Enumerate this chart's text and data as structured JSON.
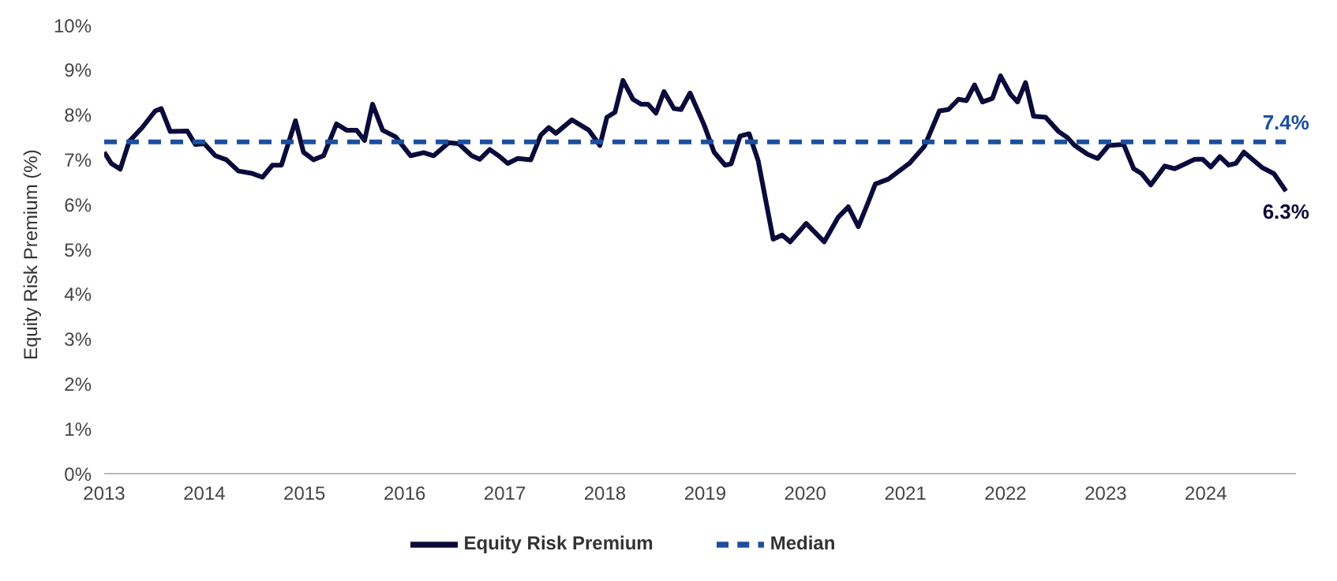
{
  "chart_data": {
    "type": "line",
    "ylabel": "Equity Risk Premium (%)",
    "xlim": [
      2013,
      2024.9
    ],
    "xticks": [
      2013,
      2014,
      2015,
      2016,
      2017,
      2018,
      2019,
      2020,
      2021,
      2022,
      2023,
      2024
    ],
    "ylim": [
      0,
      10
    ],
    "yticks": [
      {
        "value": 0,
        "label": "0%"
      },
      {
        "value": 1,
        "label": "1%"
      },
      {
        "value": 2,
        "label": "2%"
      },
      {
        "value": 3,
        "label": "3%"
      },
      {
        "value": 4,
        "label": "4%"
      },
      {
        "value": 5,
        "label": "5%"
      },
      {
        "value": 6,
        "label": "6%"
      },
      {
        "value": 7,
        "label": "7%"
      },
      {
        "value": 8,
        "label": "8%"
      },
      {
        "value": 9,
        "label": "9%"
      },
      {
        "value": 10,
        "label": "10%"
      }
    ],
    "grid": false,
    "legend": "bottom",
    "marker": "none",
    "series": [
      {
        "name": "Equity Risk Premium",
        "color": "#0b0b3b",
        "line_style": "solid",
        "x": [
          2013.0,
          2013.07,
          2013.16,
          2013.25,
          2013.38,
          2013.51,
          2013.57,
          2013.66,
          2013.83,
          2013.91,
          2014.0,
          2014.11,
          2014.22,
          2014.34,
          2014.47,
          2014.58,
          2014.68,
          2014.77,
          2014.91,
          2014.99,
          2015.09,
          2015.19,
          2015.32,
          2015.42,
          2015.52,
          2015.6,
          2015.68,
          2015.78,
          2015.91,
          2016.06,
          2016.19,
          2016.29,
          2016.44,
          2016.54,
          2016.67,
          2016.75,
          2016.85,
          2016.95,
          2017.03,
          2017.13,
          2017.26,
          2017.36,
          2017.44,
          2017.51,
          2017.67,
          2017.84,
          2017.95,
          2018.02,
          2018.1,
          2018.18,
          2018.28,
          2018.36,
          2018.43,
          2018.51,
          2018.59,
          2018.69,
          2018.76,
          2018.85,
          2018.99,
          2019.09,
          2019.2,
          2019.26,
          2019.35,
          2019.44,
          2019.53,
          2019.68,
          2019.77,
          2019.85,
          2020.01,
          2020.19,
          2020.33,
          2020.43,
          2020.53,
          2020.63,
          2020.7,
          2020.83,
          2021.04,
          2021.19,
          2021.34,
          2021.43,
          2021.53,
          2021.61,
          2021.69,
          2021.77,
          2021.87,
          2021.95,
          2022.05,
          2022.12,
          2022.2,
          2022.28,
          2022.4,
          2022.53,
          2022.62,
          2022.69,
          2022.82,
          2022.92,
          2023.03,
          2023.18,
          2023.28,
          2023.36,
          2023.45,
          2023.59,
          2023.69,
          2023.89,
          2023.97,
          2024.05,
          2024.14,
          2024.23,
          2024.3,
          2024.38,
          2024.56,
          2024.68,
          2024.8
        ],
        "values": [
          7.17,
          6.92,
          6.79,
          7.41,
          7.72,
          8.09,
          8.14,
          7.63,
          7.64,
          7.34,
          7.36,
          7.09,
          7.0,
          6.75,
          6.7,
          6.61,
          6.88,
          6.88,
          7.87,
          7.17,
          7.0,
          7.09,
          7.8,
          7.66,
          7.66,
          7.43,
          8.24,
          7.66,
          7.51,
          7.09,
          7.16,
          7.09,
          7.38,
          7.36,
          7.09,
          7.01,
          7.23,
          7.07,
          6.92,
          7.03,
          7.0,
          7.55,
          7.72,
          7.59,
          7.89,
          7.66,
          7.32,
          7.95,
          8.06,
          8.77,
          8.35,
          8.24,
          8.24,
          8.04,
          8.52,
          8.14,
          8.12,
          8.49,
          7.78,
          7.17,
          6.88,
          6.91,
          7.53,
          7.58,
          6.98,
          5.23,
          5.32,
          5.17,
          5.58,
          5.17,
          5.72,
          5.95,
          5.51,
          6.06,
          6.46,
          6.57,
          6.92,
          7.3,
          8.09,
          8.12,
          8.35,
          8.32,
          8.67,
          8.29,
          8.37,
          8.87,
          8.46,
          8.29,
          8.72,
          7.97,
          7.95,
          7.63,
          7.49,
          7.32,
          7.12,
          7.03,
          7.32,
          7.34,
          6.8,
          6.69,
          6.44,
          6.86,
          6.8,
          7.01,
          7.01,
          6.84,
          7.07,
          6.88,
          6.92,
          7.17,
          6.83,
          6.69,
          6.3
        ]
      },
      {
        "name": "Median",
        "color": "#1d4f9e",
        "line_style": "dashed",
        "x": [
          2013.0,
          2024.8
        ],
        "values": [
          7.4,
          7.4
        ]
      }
    ],
    "annotations": [
      {
        "text": "7.4%",
        "x": 2024.8,
        "y": 7.4
      },
      {
        "text": "6.3%",
        "x": 2024.8,
        "y": 6.3
      }
    ]
  }
}
